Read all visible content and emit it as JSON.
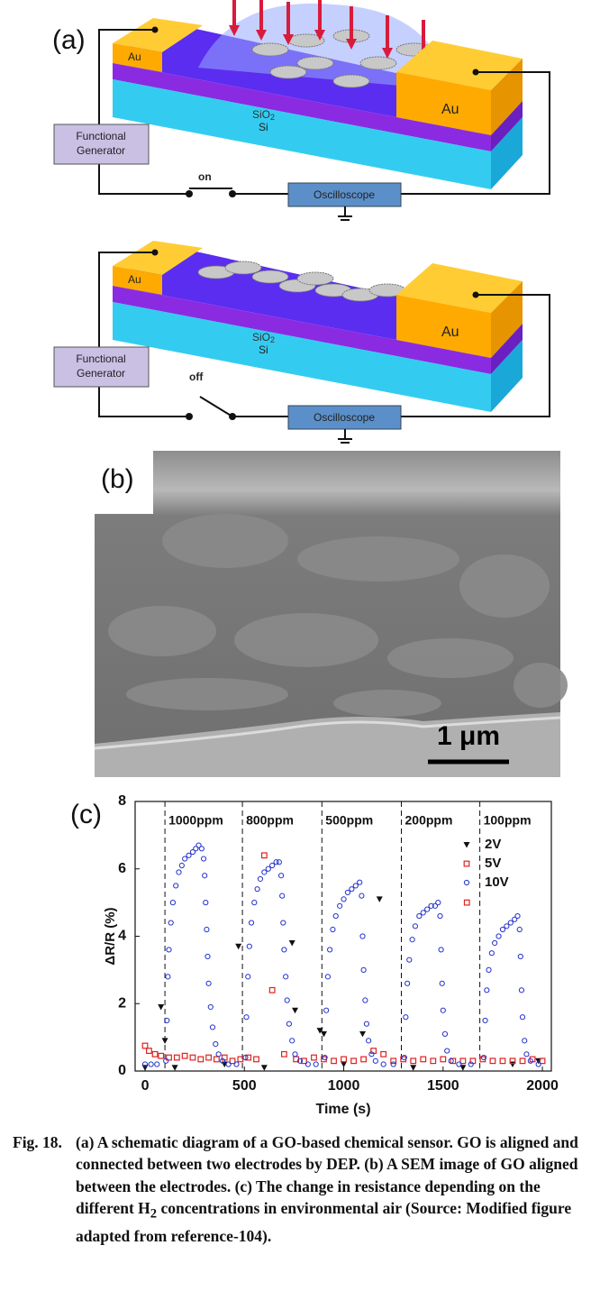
{
  "panel_a": {
    "label": "(a)",
    "top": {
      "electrode_left": "Au",
      "electrode_right": "Au",
      "oxide": "SiO",
      "oxide_sub": "2",
      "substrate": "Si",
      "generator": [
        "Functional",
        "Generator"
      ],
      "switch": "on",
      "scope": "Oscilloscope"
    },
    "bottom": {
      "electrode_left": "Au",
      "electrode_right": "Au",
      "oxide": "SiO",
      "oxide_sub": "2",
      "substrate": "Si",
      "generator": [
        "Functional",
        "Generator"
      ],
      "switch": "off",
      "scope": "Oscilloscope"
    }
  },
  "panel_b": {
    "label": "(b)",
    "scale_bar": "1 μm"
  },
  "panel_c_label": "(c)",
  "chart_data": {
    "type": "scatter",
    "xlabel": "Time (s)",
    "ylabel": "ΔR/R (%)",
    "xlim": [
      -50,
      2045
    ],
    "ylim": [
      0,
      8
    ],
    "xticks": [
      0,
      500,
      1000,
      1500,
      2000
    ],
    "yticks": [
      0,
      2,
      4,
      6,
      8
    ],
    "legend": "upper right",
    "vlines": [
      100,
      490,
      890,
      1290,
      1685
    ],
    "vline_labels": [
      "1000ppm",
      "800ppm",
      "500ppm",
      "200ppm",
      "100ppm"
    ],
    "series": [
      {
        "name": "2V",
        "color": "#111111",
        "marker": "triangle",
        "x": [
          0,
          80,
          100,
          150,
          400,
          470,
          600,
          740,
          755,
          880,
          900,
          1000,
          1095,
          1180,
          1350,
          1600,
          1850,
          1980
        ],
        "values": [
          0.1,
          1.9,
          0.9,
          0.1,
          0.2,
          3.7,
          0.1,
          3.8,
          1.8,
          1.2,
          1.1,
          0.2,
          1.1,
          5.1,
          0.1,
          0.1,
          0.2,
          0.3
        ]
      },
      {
        "name": "5V",
        "color": "#e02020",
        "marker": "square",
        "x": [
          0,
          20,
          50,
          80,
          120,
          160,
          200,
          240,
          280,
          320,
          360,
          400,
          440,
          480,
          520,
          560,
          600,
          640,
          700,
          760,
          800,
          850,
          900,
          950,
          1000,
          1050,
          1100,
          1150,
          1200,
          1250,
          1300,
          1350,
          1400,
          1450,
          1500,
          1550,
          1600,
          1620,
          1650,
          1700,
          1750,
          1800,
          1850,
          1900,
          1950,
          2000
        ],
        "values": [
          0.75,
          0.6,
          0.5,
          0.45,
          0.4,
          0.4,
          0.45,
          0.4,
          0.35,
          0.4,
          0.35,
          0.4,
          0.3,
          0.35,
          0.4,
          0.35,
          6.4,
          2.4,
          0.5,
          0.35,
          0.3,
          0.4,
          0.35,
          0.3,
          0.35,
          0.3,
          0.35,
          0.6,
          0.5,
          0.3,
          0.35,
          0.3,
          0.35,
          0.3,
          0.35,
          0.3,
          0.3,
          5.0,
          0.3,
          0.35,
          0.3,
          0.3,
          0.3,
          0.3,
          0.35,
          0.3
        ]
      },
      {
        "name": "10V",
        "color": "#2233cc",
        "marker": "circle",
        "x": [
          0,
          30,
          60,
          105,
          110,
          115,
          120,
          130,
          140,
          155,
          170,
          185,
          200,
          220,
          240,
          255,
          270,
          285,
          295,
          300,
          305,
          310,
          315,
          320,
          330,
          340,
          355,
          370,
          390,
          420,
          460,
          505,
          510,
          518,
          525,
          535,
          550,
          565,
          580,
          600,
          620,
          640,
          660,
          675,
          685,
          690,
          695,
          700,
          708,
          715,
          725,
          740,
          755,
          780,
          820,
          860,
          905,
          912,
          920,
          930,
          945,
          960,
          980,
          1000,
          1020,
          1040,
          1060,
          1080,
          1090,
          1095,
          1100,
          1108,
          1115,
          1125,
          1140,
          1160,
          1200,
          1250,
          1305,
          1312,
          1320,
          1330,
          1345,
          1360,
          1380,
          1400,
          1420,
          1440,
          1460,
          1475,
          1485,
          1490,
          1495,
          1500,
          1510,
          1520,
          1540,
          1580,
          1640,
          1705,
          1712,
          1720,
          1730,
          1745,
          1760,
          1780,
          1800,
          1820,
          1840,
          1860,
          1875,
          1885,
          1890,
          1895,
          1900,
          1910,
          1920,
          1940,
          1980
        ],
        "values": [
          0.2,
          0.2,
          0.2,
          0.3,
          1.5,
          2.8,
          3.6,
          4.4,
          5.0,
          5.5,
          5.9,
          6.1,
          6.3,
          6.4,
          6.5,
          6.6,
          6.7,
          6.6,
          6.3,
          5.8,
          5.0,
          4.2,
          3.4,
          2.6,
          1.9,
          1.3,
          0.8,
          0.5,
          0.3,
          0.2,
          0.2,
          0.4,
          1.6,
          2.8,
          3.7,
          4.4,
          5.0,
          5.4,
          5.7,
          5.9,
          6.0,
          6.1,
          6.2,
          6.2,
          5.8,
          5.2,
          4.4,
          3.6,
          2.8,
          2.1,
          1.4,
          0.9,
          0.5,
          0.3,
          0.2,
          0.2,
          0.4,
          1.8,
          2.8,
          3.6,
          4.2,
          4.6,
          4.9,
          5.1,
          5.3,
          5.4,
          5.5,
          5.6,
          5.2,
          4.0,
          3.0,
          2.1,
          1.4,
          0.9,
          0.5,
          0.3,
          0.2,
          0.2,
          0.4,
          1.6,
          2.6,
          3.3,
          3.9,
          4.3,
          4.6,
          4.7,
          4.8,
          4.9,
          4.9,
          5.0,
          4.6,
          3.6,
          2.6,
          1.8,
          1.1,
          0.6,
          0.3,
          0.2,
          0.2,
          0.4,
          1.5,
          2.4,
          3.0,
          3.5,
          3.8,
          4.0,
          4.2,
          4.3,
          4.4,
          4.5,
          4.6,
          4.2,
          3.4,
          2.4,
          1.6,
          0.9,
          0.5,
          0.3,
          0.2
        ]
      }
    ]
  },
  "caption": {
    "label": "Fig. 18.",
    "text_before": "(a) A schematic diagram of a GO-based chemical sensor. GO is aligned and connected between two electrodes by DEP. (b) A SEM image of GO aligned between the electrodes. (c) The change in resistance depending on the different H",
    "sub": "2",
    "text_after": " concentrations in environmental air (Source: Modified figure adapted from reference-104)."
  }
}
